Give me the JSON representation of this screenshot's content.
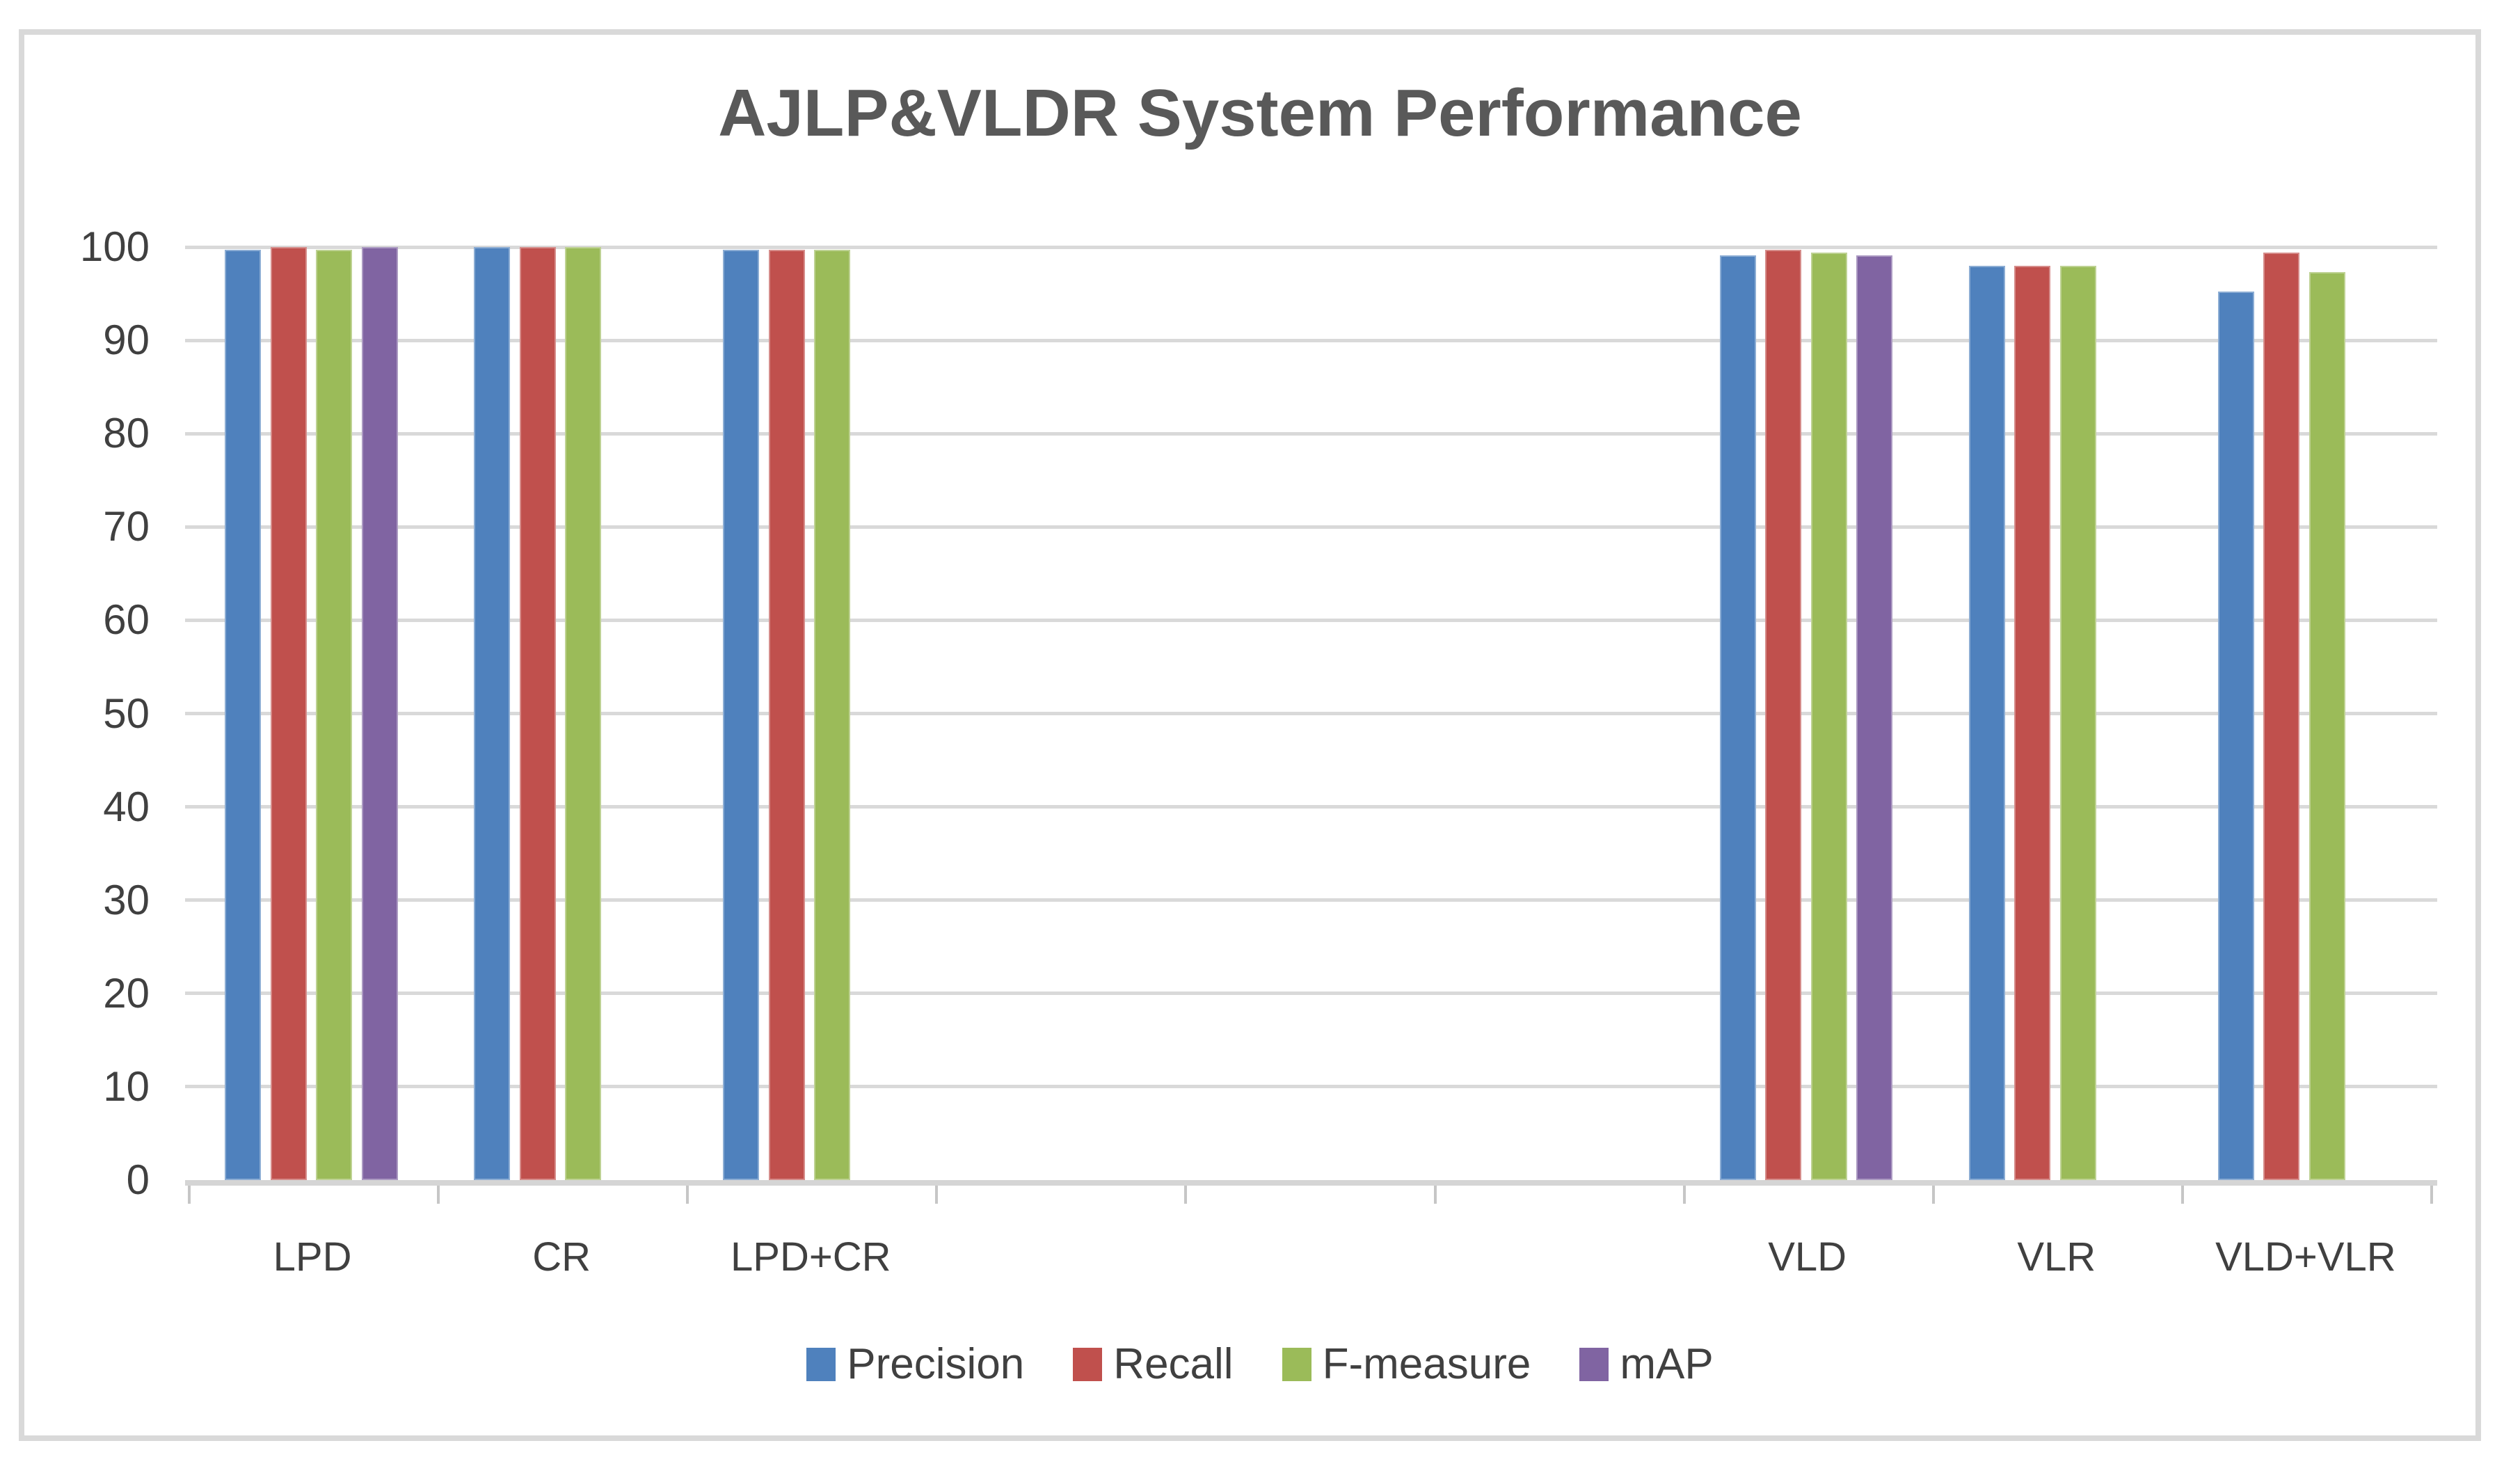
{
  "chart_data": {
    "type": "bar",
    "title": "AJLP&VLDR System Performance",
    "categories": [
      "LPD",
      "CR",
      "LPD+CR",
      "",
      "",
      "",
      "VLD",
      "VLR",
      "VLD+VLR"
    ],
    "series": [
      {
        "name": "Precision",
        "color": "#4F81BD",
        "values": [
          99.7,
          100,
          99.7,
          null,
          null,
          null,
          99.1,
          98,
          95.2
        ]
      },
      {
        "name": "Recall",
        "color": "#C0504D",
        "values": [
          100,
          100,
          99.7,
          null,
          null,
          null,
          99.7,
          98,
          99.4
        ]
      },
      {
        "name": "F-measure",
        "color": "#9BBB59",
        "values": [
          99.7,
          100,
          99.7,
          null,
          null,
          null,
          99.4,
          98,
          97.3
        ]
      },
      {
        "name": "mAP",
        "color": "#8064A2",
        "values": [
          100,
          null,
          null,
          null,
          null,
          null,
          99.1,
          null,
          null
        ]
      }
    ],
    "ylim": [
      0,
      100
    ],
    "yticks": [
      "0",
      "10",
      "20",
      "30",
      "40",
      "50",
      "60",
      "70",
      "80",
      "90",
      "100"
    ],
    "grid": "horizontal",
    "legend_position": "bottom",
    "colors": {
      "gridline": "#D9D9D9",
      "axis_line": "#D5D5D5",
      "tick": "#C6C6C6",
      "axis_text": "#404040",
      "title_text": "#595959",
      "frame_border": "#D9D9D9",
      "background": "#FFFFFF"
    }
  }
}
